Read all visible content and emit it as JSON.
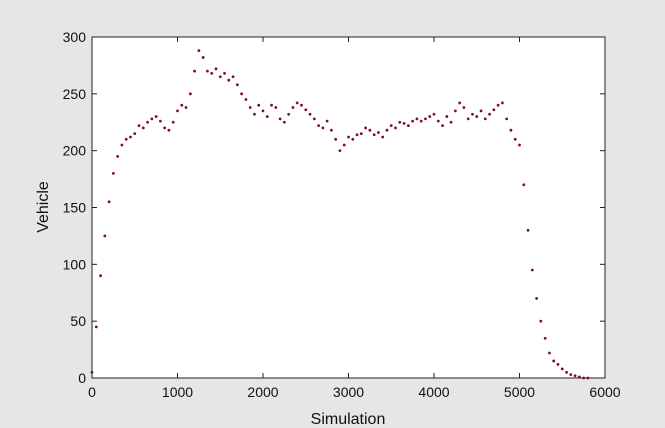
{
  "chart_data": {
    "type": "scatter",
    "title": "",
    "xlabel": "Simulation",
    "ylabel": "Vehicle",
    "xlim": [
      0,
      6000
    ],
    "ylim": [
      0,
      300
    ],
    "xticks": [
      0,
      1000,
      2000,
      3000,
      4000,
      5000,
      6000
    ],
    "yticks": [
      0,
      50,
      100,
      150,
      200,
      250,
      300
    ],
    "grid": false,
    "legend": "none",
    "marker_color": "#7a1020",
    "series": [
      {
        "x": [
          0,
          50,
          100,
          150,
          200,
          250,
          300,
          350,
          400,
          450,
          500,
          550,
          600,
          650,
          700,
          750,
          800,
          850,
          900,
          950,
          1000,
          1050,
          1100,
          1150,
          1200,
          1250,
          1300,
          1350,
          1400,
          1450,
          1500,
          1550,
          1600,
          1650,
          1700,
          1750,
          1800,
          1850,
          1900,
          1950,
          2000,
          2050,
          2100,
          2150,
          2200,
          2250,
          2300,
          2350,
          2400,
          2450,
          2500,
          2550,
          2600,
          2650,
          2700,
          2750,
          2800,
          2850,
          2900,
          2950,
          3000,
          3050,
          3100,
          3150,
          3200,
          3250,
          3300,
          3350,
          3400,
          3450,
          3500,
          3550,
          3600,
          3650,
          3700,
          3750,
          3800,
          3850,
          3900,
          3950,
          4000,
          4050,
          4100,
          4150,
          4200,
          4250,
          4300,
          4350,
          4400,
          4450,
          4500,
          4550,
          4600,
          4650,
          4700,
          4750,
          4800,
          4850,
          4900,
          4950,
          5000,
          5050,
          5100,
          5150,
          5200,
          5250,
          5300,
          5350,
          5400,
          5450,
          5500,
          5550,
          5600,
          5650,
          5700,
          5750,
          5800
        ],
        "y": [
          5,
          45,
          90,
          125,
          155,
          180,
          195,
          205,
          210,
          212,
          215,
          222,
          220,
          225,
          228,
          230,
          226,
          220,
          218,
          225,
          235,
          240,
          238,
          250,
          270,
          288,
          282,
          270,
          268,
          272,
          265,
          268,
          262,
          265,
          258,
          250,
          245,
          238,
          232,
          240,
          235,
          230,
          240,
          238,
          228,
          225,
          232,
          238,
          242,
          240,
          236,
          232,
          228,
          222,
          220,
          226,
          218,
          210,
          200,
          205,
          212,
          210,
          214,
          215,
          220,
          218,
          214,
          216,
          212,
          218,
          222,
          220,
          225,
          224,
          222,
          226,
          228,
          226,
          228,
          230,
          232,
          226,
          222,
          230,
          225,
          235,
          242,
          238,
          228,
          232,
          230,
          235,
          228,
          232,
          236,
          240,
          242,
          228,
          218,
          210,
          205,
          170,
          130,
          95,
          70,
          50,
          35,
          22,
          15,
          12,
          8,
          5,
          3,
          2,
          1,
          0,
          0
        ]
      }
    ]
  }
}
